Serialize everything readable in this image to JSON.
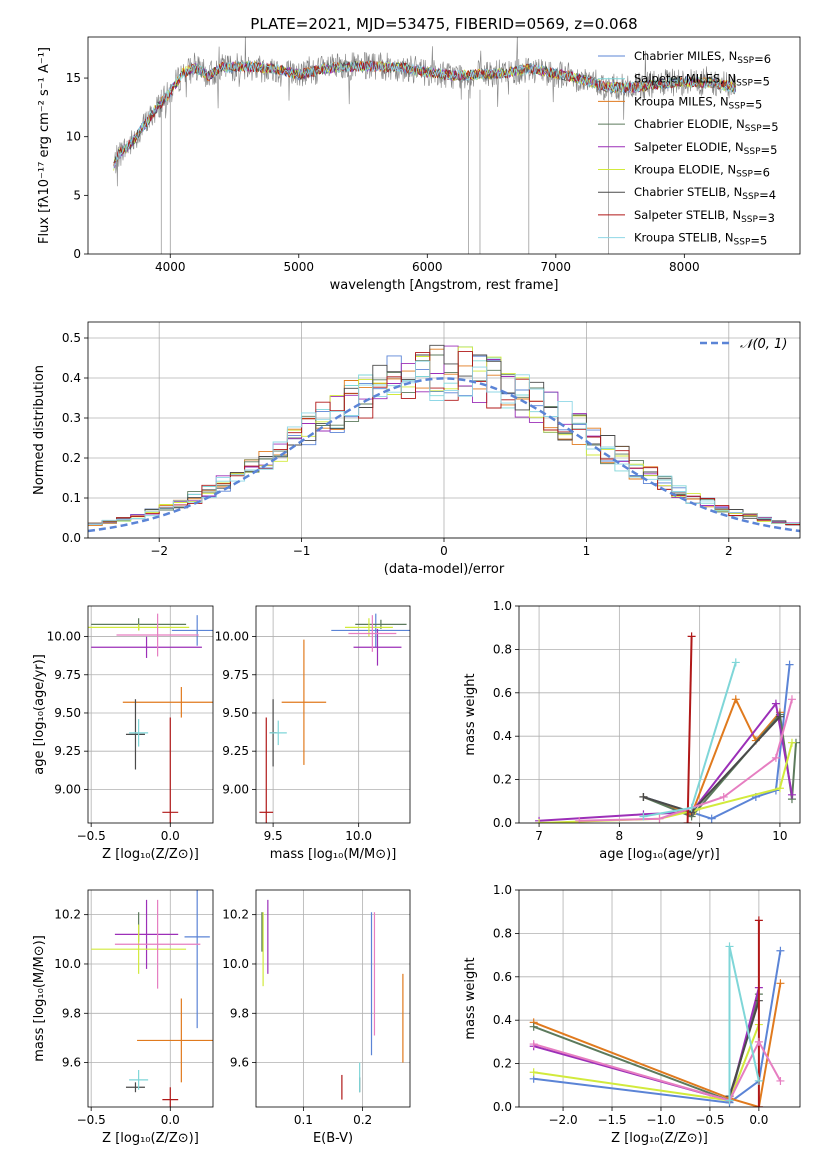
{
  "figure": {
    "title": "PLATE=2021, MJD=53475, FIBERID=0569, z=0.068"
  },
  "chart_data": [
    {
      "id": "spectrum",
      "type": "line",
      "title": "PLATE=2021, MJD=53475, FIBERID=0569, z=0.068",
      "xlabel": "wavelength [Angstrom, rest frame]",
      "ylabel": "Flux [fλ10⁻¹⁷ erg cm⁻² s⁻¹ A⁻¹]",
      "xlim": [
        3360,
        8900
      ],
      "ylim": [
        0,
        18.5
      ],
      "xticks": [
        4000,
        5000,
        6000,
        7000,
        8000
      ],
      "yticks": [
        0,
        5,
        10,
        15
      ],
      "grid": false,
      "legend_position": "top-right",
      "continuum": {
        "x": [
          3560,
          3600,
          3700,
          3800,
          3900,
          4000,
          4100,
          4200,
          4300,
          4400,
          4600,
          4800,
          5000,
          5200,
          5400,
          5600,
          5800,
          6000,
          6200,
          6400,
          6600,
          6800,
          7000,
          7200,
          7400,
          7600,
          7800,
          8000,
          8200,
          8400
        ],
        "y": [
          7.5,
          8.5,
          9.5,
          11.0,
          12.5,
          13.8,
          15.5,
          15.8,
          15.2,
          15.9,
          16.0,
          15.8,
          15.3,
          15.8,
          16.0,
          16.0,
          15.9,
          15.5,
          15.2,
          15.3,
          15.4,
          15.8,
          15.4,
          14.9,
          14.2,
          14.2,
          14.5,
          14.7,
          14.6,
          14.2
        ]
      },
      "series": [
        {
          "name": "Chabrier MILES, N<sub>SSP</sub>=6",
          "color": "#5b84d6"
        },
        {
          "name": "Salpeter MILES, N<sub>SSP</sub>=5",
          "color": "#7fd6d8"
        },
        {
          "name": "Kroupa MILES, N<sub>SSP</sub>=5",
          "color": "#e07a1e"
        },
        {
          "name": "Chabrier ELODIE, N<sub>SSP</sub>=5",
          "color": "#5c7a5c"
        },
        {
          "name": "Salpeter ELODIE, N<sub>SSP</sub>=5",
          "color": "#9c2fb8"
        },
        {
          "name": "Kroupa ELODIE, N<sub>SSP</sub>=6",
          "color": "#d2ea3c"
        },
        {
          "name": "Chabrier STELIB, N<sub>SSP</sub>=4",
          "color": "#4a4a4a"
        },
        {
          "name": "Salpeter STELIB, N<sub>SSP</sub>=3",
          "color": "#b01818"
        },
        {
          "name": "Kroupa STELIB, N<sub>SSP</sub>=5",
          "color": "#8fd7e6"
        }
      ]
    },
    {
      "id": "residuals",
      "type": "line",
      "xlabel": "(data-model)/error",
      "ylabel": "Normed distribution",
      "xlim": [
        -2.5,
        2.5
      ],
      "ylim": [
        0,
        0.54
      ],
      "xticks": [
        -2,
        -1,
        0,
        1,
        2
      ],
      "yticks": [
        0.0,
        0.1,
        0.2,
        0.3,
        0.4,
        0.5
      ],
      "grid": true,
      "legend_position": "top-right",
      "legend": "𝒩(0, 1)",
      "gaussian_color": "#5b84d6"
    },
    {
      "id": "age_vs_Z",
      "type": "scatter",
      "xlabel": "Z [log₁₀(Z/Z⊙)]",
      "ylabel": "age  [log₁₀(age/yr)]",
      "xlim": [
        -0.52,
        0.27
      ],
      "ylim": [
        8.78,
        10.2
      ],
      "xticks": [
        -0.5,
        0.0
      ],
      "yticks": [
        9.0,
        9.25,
        9.5,
        9.75,
        10.0
      ],
      "grid": true,
      "points": [
        {
          "x": 0.17,
          "y": 10.04,
          "xerr": 0.16,
          "yerr": 0.1,
          "color": "#5b84d6"
        },
        {
          "x": 0.07,
          "y": 9.57,
          "xerr": 0.37,
          "yerr": 0.1,
          "color": "#e07a1e"
        },
        {
          "x": -0.2,
          "y": 10.08,
          "xerr": 0.3,
          "yerr": 0.04,
          "color": "#5c7a5c"
        },
        {
          "x": -0.15,
          "y": 9.93,
          "xerr": 0.35,
          "yerr": 0.07,
          "color": "#9c2fb8"
        },
        {
          "x": -0.2,
          "y": 10.06,
          "xerr": 0.32,
          "yerr": 0.02,
          "color": "#d2ea3c"
        },
        {
          "x": -0.22,
          "y": 9.36,
          "xerr": 0.06,
          "yerr": 0.23,
          "color": "#4a4a4a"
        },
        {
          "x": 0.0,
          "y": 8.85,
          "xerr": 0.05,
          "yerr": 0.62,
          "color": "#b01818"
        },
        {
          "x": -0.08,
          "y": 10.01,
          "xerr": 0.26,
          "yerr": 0.14,
          "color": "#e67ec1"
        },
        {
          "x": -0.2,
          "y": 9.37,
          "xerr": 0.06,
          "yerr": 0.09,
          "color": "#7fd6d8"
        }
      ]
    },
    {
      "id": "age_vs_mass",
      "type": "scatter",
      "xlabel": "mass [log₁₀(M/M⊙)]",
      "ylabel": "",
      "xlim": [
        9.4,
        10.3
      ],
      "ylim": [
        8.78,
        10.2
      ],
      "xticks": [
        9.5,
        10.0
      ],
      "yticks": [
        9.0,
        9.25,
        9.5,
        9.75,
        10.0
      ],
      "grid": true,
      "points": [
        {
          "x": 10.1,
          "y": 10.04,
          "xerr": 0.26,
          "yerr": 0.11,
          "color": "#5b84d6"
        },
        {
          "x": 9.68,
          "y": 9.57,
          "xerr": 0.13,
          "yerr": 0.41,
          "color": "#e07a1e"
        },
        {
          "x": 10.13,
          "y": 10.08,
          "xerr": 0.15,
          "yerr": 0.03,
          "color": "#5c7a5c"
        },
        {
          "x": 10.11,
          "y": 9.93,
          "xerr": 0.14,
          "yerr": 0.12,
          "color": "#9c2fb8"
        },
        {
          "x": 10.06,
          "y": 10.06,
          "xerr": 0.14,
          "yerr": 0.06,
          "color": "#d2ea3c"
        },
        {
          "x": 9.5,
          "y": 9.37,
          "xerr": 0.02,
          "yerr": 0.22,
          "color": "#4a4a4a"
        },
        {
          "x": 9.46,
          "y": 8.85,
          "xerr": 0.04,
          "yerr": 0.62,
          "color": "#b01818"
        },
        {
          "x": 10.08,
          "y": 10.02,
          "xerr": 0.14,
          "yerr": 0.12,
          "color": "#e67ec1"
        },
        {
          "x": 9.53,
          "y": 9.37,
          "xerr": 0.05,
          "yerr": 0.08,
          "color": "#7fd6d8"
        }
      ]
    },
    {
      "id": "mass_weight_vs_age",
      "type": "line",
      "xlabel": "age  [log₁₀(age/yr)]",
      "ylabel": "mass weight",
      "xlim": [
        6.75,
        10.25
      ],
      "ylim": [
        0.0,
        1.0
      ],
      "xticks": [
        7,
        8,
        9,
        10
      ],
      "yticks": [
        0.0,
        0.2,
        0.4,
        0.6,
        0.8,
        1.0
      ],
      "grid": true,
      "series": [
        {
          "color": "#5b84d6",
          "x": [
            8.3,
            9.15,
            9.7,
            9.95,
            10.12
          ],
          "y": [
            0.12,
            0.02,
            0.12,
            0.15,
            0.73
          ]
        },
        {
          "color": "#e07a1e",
          "x": [
            8.3,
            8.9,
            9.45,
            9.7,
            10.0
          ],
          "y": [
            0.12,
            0.04,
            0.57,
            0.38,
            0.51
          ]
        },
        {
          "color": "#5c7a5c",
          "x": [
            8.3,
            8.9,
            10.0,
            10.15,
            10.2
          ],
          "y": [
            0.12,
            0.03,
            0.5,
            0.11,
            0.37
          ]
        },
        {
          "color": "#9c2fb8",
          "x": [
            7.0,
            8.3,
            8.9,
            9.95,
            10.15
          ],
          "y": [
            0.01,
            0.04,
            0.05,
            0.55,
            0.13
          ]
        },
        {
          "color": "#d2ea3c",
          "x": [
            7.0,
            8.5,
            8.95,
            10.0,
            10.15
          ],
          "y": [
            0.0,
            0.02,
            0.06,
            0.16,
            0.37
          ]
        },
        {
          "color": "#4a4a4a",
          "x": [
            8.3,
            8.9,
            10.0
          ],
          "y": [
            0.12,
            0.05,
            0.49
          ]
        },
        {
          "color": "#b01818",
          "x": [
            8.85,
            8.9
          ],
          "y": [
            0.0,
            0.86
          ]
        },
        {
          "color": "#e67ec1",
          "x": [
            7.5,
            8.5,
            9.3,
            9.95,
            10.15
          ],
          "y": [
            0.01,
            0.02,
            0.12,
            0.3,
            0.57
          ]
        },
        {
          "color": "#7fd6d8",
          "x": [
            8.3,
            8.9,
            9.45
          ],
          "y": [
            0.03,
            0.07,
            0.74
          ]
        }
      ]
    },
    {
      "id": "mass_vs_Z",
      "type": "scatter",
      "xlabel": "Z [log₁₀(Z/Z⊙)]",
      "ylabel": "mass [log₁₀(M/M⊙)]",
      "xlim": [
        -0.52,
        0.27
      ],
      "ylim": [
        9.42,
        10.3
      ],
      "xticks": [
        -0.5,
        0.0
      ],
      "yticks": [
        9.6,
        9.8,
        10.0,
        10.2
      ],
      "grid": true,
      "points": [
        {
          "x": 0.17,
          "y": 10.11,
          "xerr": 0.08,
          "yerr": 0.37,
          "color": "#5b84d6"
        },
        {
          "x": 0.07,
          "y": 9.69,
          "xerr": 0.28,
          "yerr": 0.17,
          "color": "#e07a1e"
        },
        {
          "x": -0.2,
          "y": 10.15,
          "xerr": 0.0,
          "yerr": 0.06,
          "color": "#5c7a5c"
        },
        {
          "x": -0.15,
          "y": 10.12,
          "xerr": 0.2,
          "yerr": 0.14,
          "color": "#9c2fb8"
        },
        {
          "x": -0.2,
          "y": 10.06,
          "xerr": 0.3,
          "yerr": 0.1,
          "color": "#d2ea3c"
        },
        {
          "x": -0.22,
          "y": 9.5,
          "xerr": 0.06,
          "yerr": 0.02,
          "color": "#4a4a4a"
        },
        {
          "x": 0.0,
          "y": 9.45,
          "xerr": 0.05,
          "yerr": 0.05,
          "color": "#b01818"
        },
        {
          "x": -0.08,
          "y": 10.08,
          "xerr": 0.27,
          "yerr": 0.18,
          "color": "#e67ec1"
        },
        {
          "x": -0.2,
          "y": 9.53,
          "xerr": 0.06,
          "yerr": 0.04,
          "color": "#7fd6d8"
        }
      ]
    },
    {
      "id": "mass_vs_ebv",
      "type": "scatter",
      "xlabel": "E(B-V)",
      "ylabel": "",
      "xlim": [
        0.02,
        0.28
      ],
      "ylim": [
        9.42,
        10.3
      ],
      "xticks": [
        0.1,
        0.2
      ],
      "yticks": [
        9.6,
        9.8,
        10.0,
        10.2
      ],
      "grid": true,
      "points": [
        {
          "x": 0.215,
          "y": 9.92,
          "xerr": 0.0,
          "yerr": 0.29,
          "color": "#5b84d6"
        },
        {
          "x": 0.268,
          "y": 9.78,
          "xerr": 0.0,
          "yerr": 0.18,
          "color": "#e07a1e"
        },
        {
          "x": 0.03,
          "y": 10.13,
          "xerr": 0.0,
          "yerr": 0.08,
          "color": "#5c7a5c"
        },
        {
          "x": 0.04,
          "y": 10.11,
          "xerr": 0.0,
          "yerr": 0.15,
          "color": "#9c2fb8"
        },
        {
          "x": 0.032,
          "y": 10.06,
          "xerr": 0.0,
          "yerr": 0.15,
          "color": "#d2ea3c"
        },
        {
          "x": 0.195,
          "y": 9.51,
          "xerr": 0.0,
          "yerr": 0.03,
          "color": "#4a4a4a"
        },
        {
          "x": 0.165,
          "y": 9.5,
          "xerr": 0.0,
          "yerr": 0.05,
          "color": "#b01818"
        },
        {
          "x": 0.22,
          "y": 9.96,
          "xerr": 0.0,
          "yerr": 0.25,
          "color": "#e67ec1"
        },
        {
          "x": 0.195,
          "y": 9.54,
          "xerr": 0.0,
          "yerr": 0.06,
          "color": "#7fd6d8"
        }
      ]
    },
    {
      "id": "mass_weight_vs_Z",
      "type": "line",
      "xlabel": "Z [log₁₀(Z/Z⊙)]",
      "ylabel": "mass weight",
      "xlim": [
        -2.45,
        0.42
      ],
      "ylim": [
        0.0,
        1.0
      ],
      "xticks": [
        -2.0,
        -1.5,
        -1.0,
        -0.5,
        0.0
      ],
      "yticks": [
        0.0,
        0.2,
        0.4,
        0.6,
        0.8,
        1.0
      ],
      "grid": true,
      "series": [
        {
          "color": "#5b84d6",
          "x": [
            -2.3,
            -0.3,
            0.0,
            0.22
          ],
          "y": [
            0.13,
            0.02,
            0.12,
            0.72
          ]
        },
        {
          "color": "#e07a1e",
          "x": [
            -2.3,
            -0.3,
            0.0,
            0.22
          ],
          "y": [
            0.39,
            0.04,
            0.0,
            0.57
          ]
        },
        {
          "color": "#5c7a5c",
          "x": [
            -2.3,
            -0.3,
            0.0
          ],
          "y": [
            0.37,
            0.03,
            0.52
          ]
        },
        {
          "color": "#9c2fb8",
          "x": [
            -2.3,
            -0.3,
            0.0
          ],
          "y": [
            0.28,
            0.03,
            0.55
          ]
        },
        {
          "color": "#d2ea3c",
          "x": [
            -2.3,
            -0.3,
            0.0
          ],
          "y": [
            0.16,
            0.03,
            0.38
          ]
        },
        {
          "color": "#4a4a4a",
          "x": [
            -0.3,
            0.0
          ],
          "y": [
            0.05,
            0.49
          ]
        },
        {
          "color": "#b01818",
          "x": [
            0.0,
            0.0
          ],
          "y": [
            0.0,
            0.86
          ]
        },
        {
          "color": "#e67ec1",
          "x": [
            -2.3,
            -0.3,
            0.0,
            0.22
          ],
          "y": [
            0.29,
            0.03,
            0.3,
            0.12
          ]
        },
        {
          "color": "#7fd6d8",
          "x": [
            -0.3,
            -0.3,
            0.0
          ],
          "y": [
            0.03,
            0.74,
            0.12
          ]
        }
      ]
    }
  ]
}
